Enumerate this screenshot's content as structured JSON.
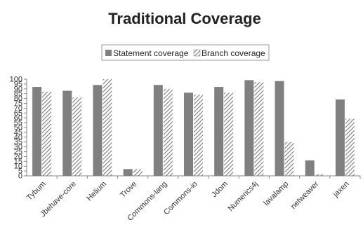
{
  "chart_data": {
    "type": "bar",
    "title": "Traditional Coverage",
    "categories": [
      "Tybum",
      "Jbehave-core",
      "Helium",
      "Trove",
      "Commons-lang",
      "Commons-io",
      "Jdom",
      "Numerics4j",
      "lavalamp",
      "netweaver",
      "jaxen"
    ],
    "series": [
      {
        "name": "Statement coverage",
        "pattern": "solid",
        "color": "#808080",
        "values": [
          92,
          88,
          94,
          7,
          94,
          86,
          92,
          99,
          98,
          16,
          79
        ]
      },
      {
        "name": "Branch coverage",
        "pattern": "hatched",
        "color": "#808080",
        "values": [
          87,
          81,
          100,
          7,
          90,
          84,
          86,
          97,
          35,
          2,
          59
        ]
      }
    ],
    "ylim": [
      0,
      100
    ],
    "yticks": [
      0,
      5,
      10,
      15,
      20,
      25,
      30,
      35,
      40,
      45,
      50,
      55,
      60,
      65,
      70,
      75,
      80,
      85,
      90,
      95,
      100
    ],
    "xlabel": "",
    "ylabel": "",
    "grid": false,
    "legend_position": "top-center"
  }
}
